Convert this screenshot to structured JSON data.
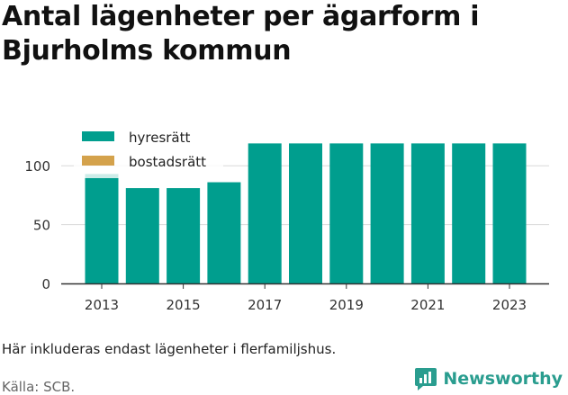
{
  "title": "Antal lägenheter per ägarform i Bjurholms kommun",
  "note": "Här inkluderas endast lägenheter i flerfamiljshus.",
  "source": "Källa: SCB.",
  "brand": {
    "name": "Newsworthy",
    "icon": "newsworthy-logo-icon",
    "color": "#2a9d8f"
  },
  "chart_data": {
    "type": "bar",
    "categories": [
      "2013",
      "2014",
      "2015",
      "2016",
      "2017",
      "2018",
      "2019",
      "2020",
      "2021",
      "2022",
      "2023"
    ],
    "x_tick_labels": [
      "2013",
      "2015",
      "2017",
      "2019",
      "2021",
      "2023"
    ],
    "series": [
      {
        "name": "hyresrätt",
        "color": "#009e8e",
        "values": [
          93,
          81,
          81,
          86,
          119,
          119,
          119,
          119,
          119,
          119,
          119
        ]
      },
      {
        "name": "bostadsrätt",
        "color": "#d4a24c",
        "values": [
          0,
          0,
          0,
          0,
          0,
          0,
          0,
          0,
          0,
          0,
          0
        ]
      }
    ],
    "yticks": [
      0,
      50,
      100
    ],
    "ylim": [
      0,
      130
    ],
    "grid": true,
    "legend": "top-left",
    "stacked": true
  }
}
